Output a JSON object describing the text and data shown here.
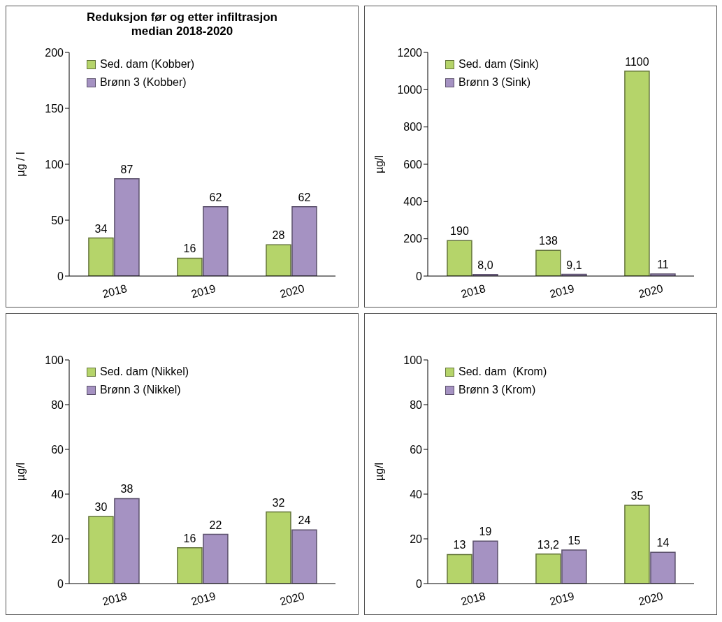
{
  "chart_data": [
    {
      "type": "bar",
      "title": "Reduksjon før og etter infiltrasjon median 2018-2020",
      "ylabel": "µg / l",
      "categories": [
        "2018",
        "2019",
        "2020"
      ],
      "series": [
        {
          "name": "Sed. dam (Kobber)",
          "color": "#b5d46a",
          "values": [
            34,
            16,
            28
          ]
        },
        {
          "name": "Brønn 3 (Kobber)",
          "color": "#a592c2",
          "values": [
            87,
            62,
            62
          ]
        }
      ],
      "ylim": [
        0,
        200
      ],
      "yticks": [
        0,
        50,
        100,
        150,
        200
      ],
      "grid": false,
      "legend": "top left",
      "data_labels": true
    },
    {
      "type": "bar",
      "ylabel": "µg/l",
      "categories": [
        "2018",
        "2019",
        "2020"
      ],
      "series": [
        {
          "name": "Sed. dam (Sink)",
          "color": "#b5d46a",
          "values": [
            190,
            138,
            1100
          ]
        },
        {
          "name": "Brønn 3 (Sink)",
          "color": "#a592c2",
          "values": [
            8.0,
            9.1,
            11
          ],
          "value_labels": [
            "8,0",
            "9,1",
            "11"
          ]
        }
      ],
      "ylim": [
        0,
        1200
      ],
      "yticks": [
        0,
        200,
        400,
        600,
        800,
        1000,
        1200
      ],
      "grid": false,
      "legend": "top left",
      "data_labels": true
    },
    {
      "type": "bar",
      "ylabel": "µg/l",
      "categories": [
        "2018",
        "2019",
        "2020"
      ],
      "series": [
        {
          "name": "Sed. dam (Nikkel)",
          "color": "#b5d46a",
          "values": [
            30,
            16,
            32
          ]
        },
        {
          "name": "Brønn 3 (Nikkel)",
          "color": "#a592c2",
          "values": [
            38,
            22,
            24
          ]
        }
      ],
      "ylim": [
        0,
        100
      ],
      "yticks": [
        0,
        20,
        40,
        60,
        80,
        100
      ],
      "grid": false,
      "legend": "top left",
      "data_labels": true
    },
    {
      "type": "bar",
      "ylabel": "µg/l",
      "categories": [
        "2018",
        "2019",
        "2020"
      ],
      "series": [
        {
          "name": "Sed. dam  (Krom)",
          "color": "#b5d46a",
          "values": [
            13,
            13.2,
            35
          ],
          "value_labels": [
            "13",
            "13,2",
            "35"
          ]
        },
        {
          "name": "Brønn 3 (Krom)",
          "color": "#a592c2",
          "values": [
            19,
            15,
            14
          ]
        }
      ],
      "ylim": [
        0,
        100
      ],
      "yticks": [
        0,
        20,
        40,
        60,
        80,
        100
      ],
      "grid": false,
      "legend": "top left",
      "data_labels": true
    }
  ]
}
